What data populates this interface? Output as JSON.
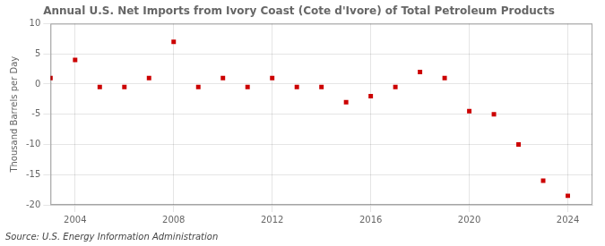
{
  "chart_data": {
    "type": "scatter",
    "title": "Annual U.S. Net Imports from Ivory Coast (Cote d'Ivore) of Total Petroleum Products",
    "y_label": "Thousand Barrels per Day",
    "annotations": [
      "Source: U.S. Energy Information Administration"
    ],
    "x": [
      2003,
      2004,
      2005,
      2006,
      2007,
      2008,
      2009,
      2010,
      2011,
      2012,
      2013,
      2014,
      2015,
      2016,
      2017,
      2018,
      2019,
      2020,
      2021,
      2022,
      2023,
      2024
    ],
    "values": [
      1,
      4,
      -0.5,
      -0.5,
      1,
      7,
      -0.5,
      1,
      -0.5,
      1,
      -0.5,
      -0.5,
      -3,
      -2,
      -0.5,
      2,
      1,
      -4.5,
      -5,
      -10,
      -16,
      -18.5
    ],
    "color": "#cc0000",
    "marker": "square",
    "xlim": [
      2003.0,
      2025.0
    ],
    "xticks": [
      2004,
      2008,
      2012,
      2016,
      2020,
      2024
    ],
    "ylim": [
      -20,
      10
    ],
    "yticks": [
      -20,
      -15,
      -10,
      -5,
      0,
      5,
      10
    ],
    "grid": true
  }
}
